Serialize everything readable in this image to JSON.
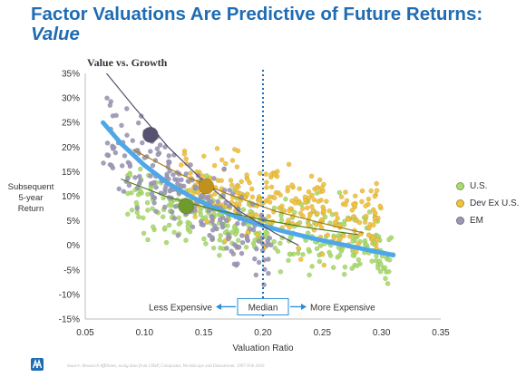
{
  "header": {
    "title_line1": "Factor Valuations Are Predictive of Future Returns:",
    "title_line2": "Value"
  },
  "footer": {
    "source": "Source: Research Affiliates, using data from CRSP, Compustat, Worldscope and Datastream. 1997-Feb 2016"
  },
  "colors": {
    "title": "#1f6cb4",
    "us": "#a9dc6c",
    "dev": "#f0c23e",
    "em": "#9b98b6",
    "fit_main": "#4ea8e8",
    "fit_us": "#4d7f1f",
    "fit_dev": "#a37c15",
    "fit_em": "#56506e",
    "median_line": "#1f6cb4",
    "annotation": "#2a8ed9"
  },
  "chart_data": {
    "type": "scatter",
    "title": "Value vs. Growth",
    "xlabel": "Valuation Ratio",
    "ylabel": [
      "Subsequent",
      "5-year",
      "Return"
    ],
    "xlim": [
      0.05,
      0.35
    ],
    "ylim": [
      -15,
      35
    ],
    "xticks": [
      "0.05",
      "0.10",
      "0.15",
      "0.20",
      "0.25",
      "0.30",
      "0.35"
    ],
    "yticks": [
      "-15%",
      "-10%",
      "-5%",
      "0%",
      "5%",
      "10%",
      "15%",
      "20%",
      "25%",
      "30%",
      "35%"
    ],
    "median": 0.2,
    "annotations": {
      "left": "Less Expensive",
      "center": "Median",
      "right": "More Expensive"
    },
    "legend_position": "right",
    "series": [
      {
        "name": "U.S.",
        "color_key": "us",
        "x_range": [
          0.085,
          0.31
        ],
        "y_center": 4,
        "slope": -50,
        "spread": 5.5,
        "count": 320,
        "highlight": {
          "x": 0.135,
          "y": 8
        },
        "fit": [
          [
            0.08,
            13.5
          ],
          [
            0.12,
            9.8
          ],
          [
            0.16,
            7.2
          ],
          [
            0.2,
            5.2
          ],
          [
            0.24,
            3.5
          ],
          [
            0.28,
            2.2
          ]
        ]
      },
      {
        "name": "Dev Ex U.S.",
        "color_key": "dev",
        "x_range": [
          0.13,
          0.3
        ],
        "y_center": 8,
        "slope": -45,
        "spread": 6,
        "count": 300,
        "highlight": {
          "x": 0.152,
          "y": 12
        },
        "fit": [
          [
            0.09,
            19.5
          ],
          [
            0.13,
            14.5
          ],
          [
            0.17,
            10.5
          ],
          [
            0.21,
            7.0
          ],
          [
            0.25,
            4.5
          ],
          [
            0.285,
            2.5
          ]
        ]
      },
      {
        "name": "EM",
        "color_key": "em",
        "x_range": [
          0.065,
          0.21
        ],
        "y_center": 10,
        "slope": -160,
        "spread": 6,
        "count": 220,
        "highlight": {
          "x": 0.105,
          "y": 22.5
        },
        "fit": [
          [
            0.068,
            35
          ],
          [
            0.09,
            28.5
          ],
          [
            0.12,
            20
          ],
          [
            0.15,
            13
          ],
          [
            0.18,
            7
          ],
          [
            0.21,
            2.5
          ],
          [
            0.23,
            0
          ]
        ]
      }
    ],
    "overall_fit": [
      [
        0.065,
        25
      ],
      [
        0.08,
        20.8
      ],
      [
        0.1,
        16.3
      ],
      [
        0.12,
        12.6
      ],
      [
        0.14,
        9.8
      ],
      [
        0.16,
        7.5
      ],
      [
        0.18,
        5.6
      ],
      [
        0.2,
        4.0
      ],
      [
        0.22,
        2.7
      ],
      [
        0.25,
        1.0
      ],
      [
        0.28,
        -0.5
      ],
      [
        0.31,
        -2
      ]
    ]
  }
}
